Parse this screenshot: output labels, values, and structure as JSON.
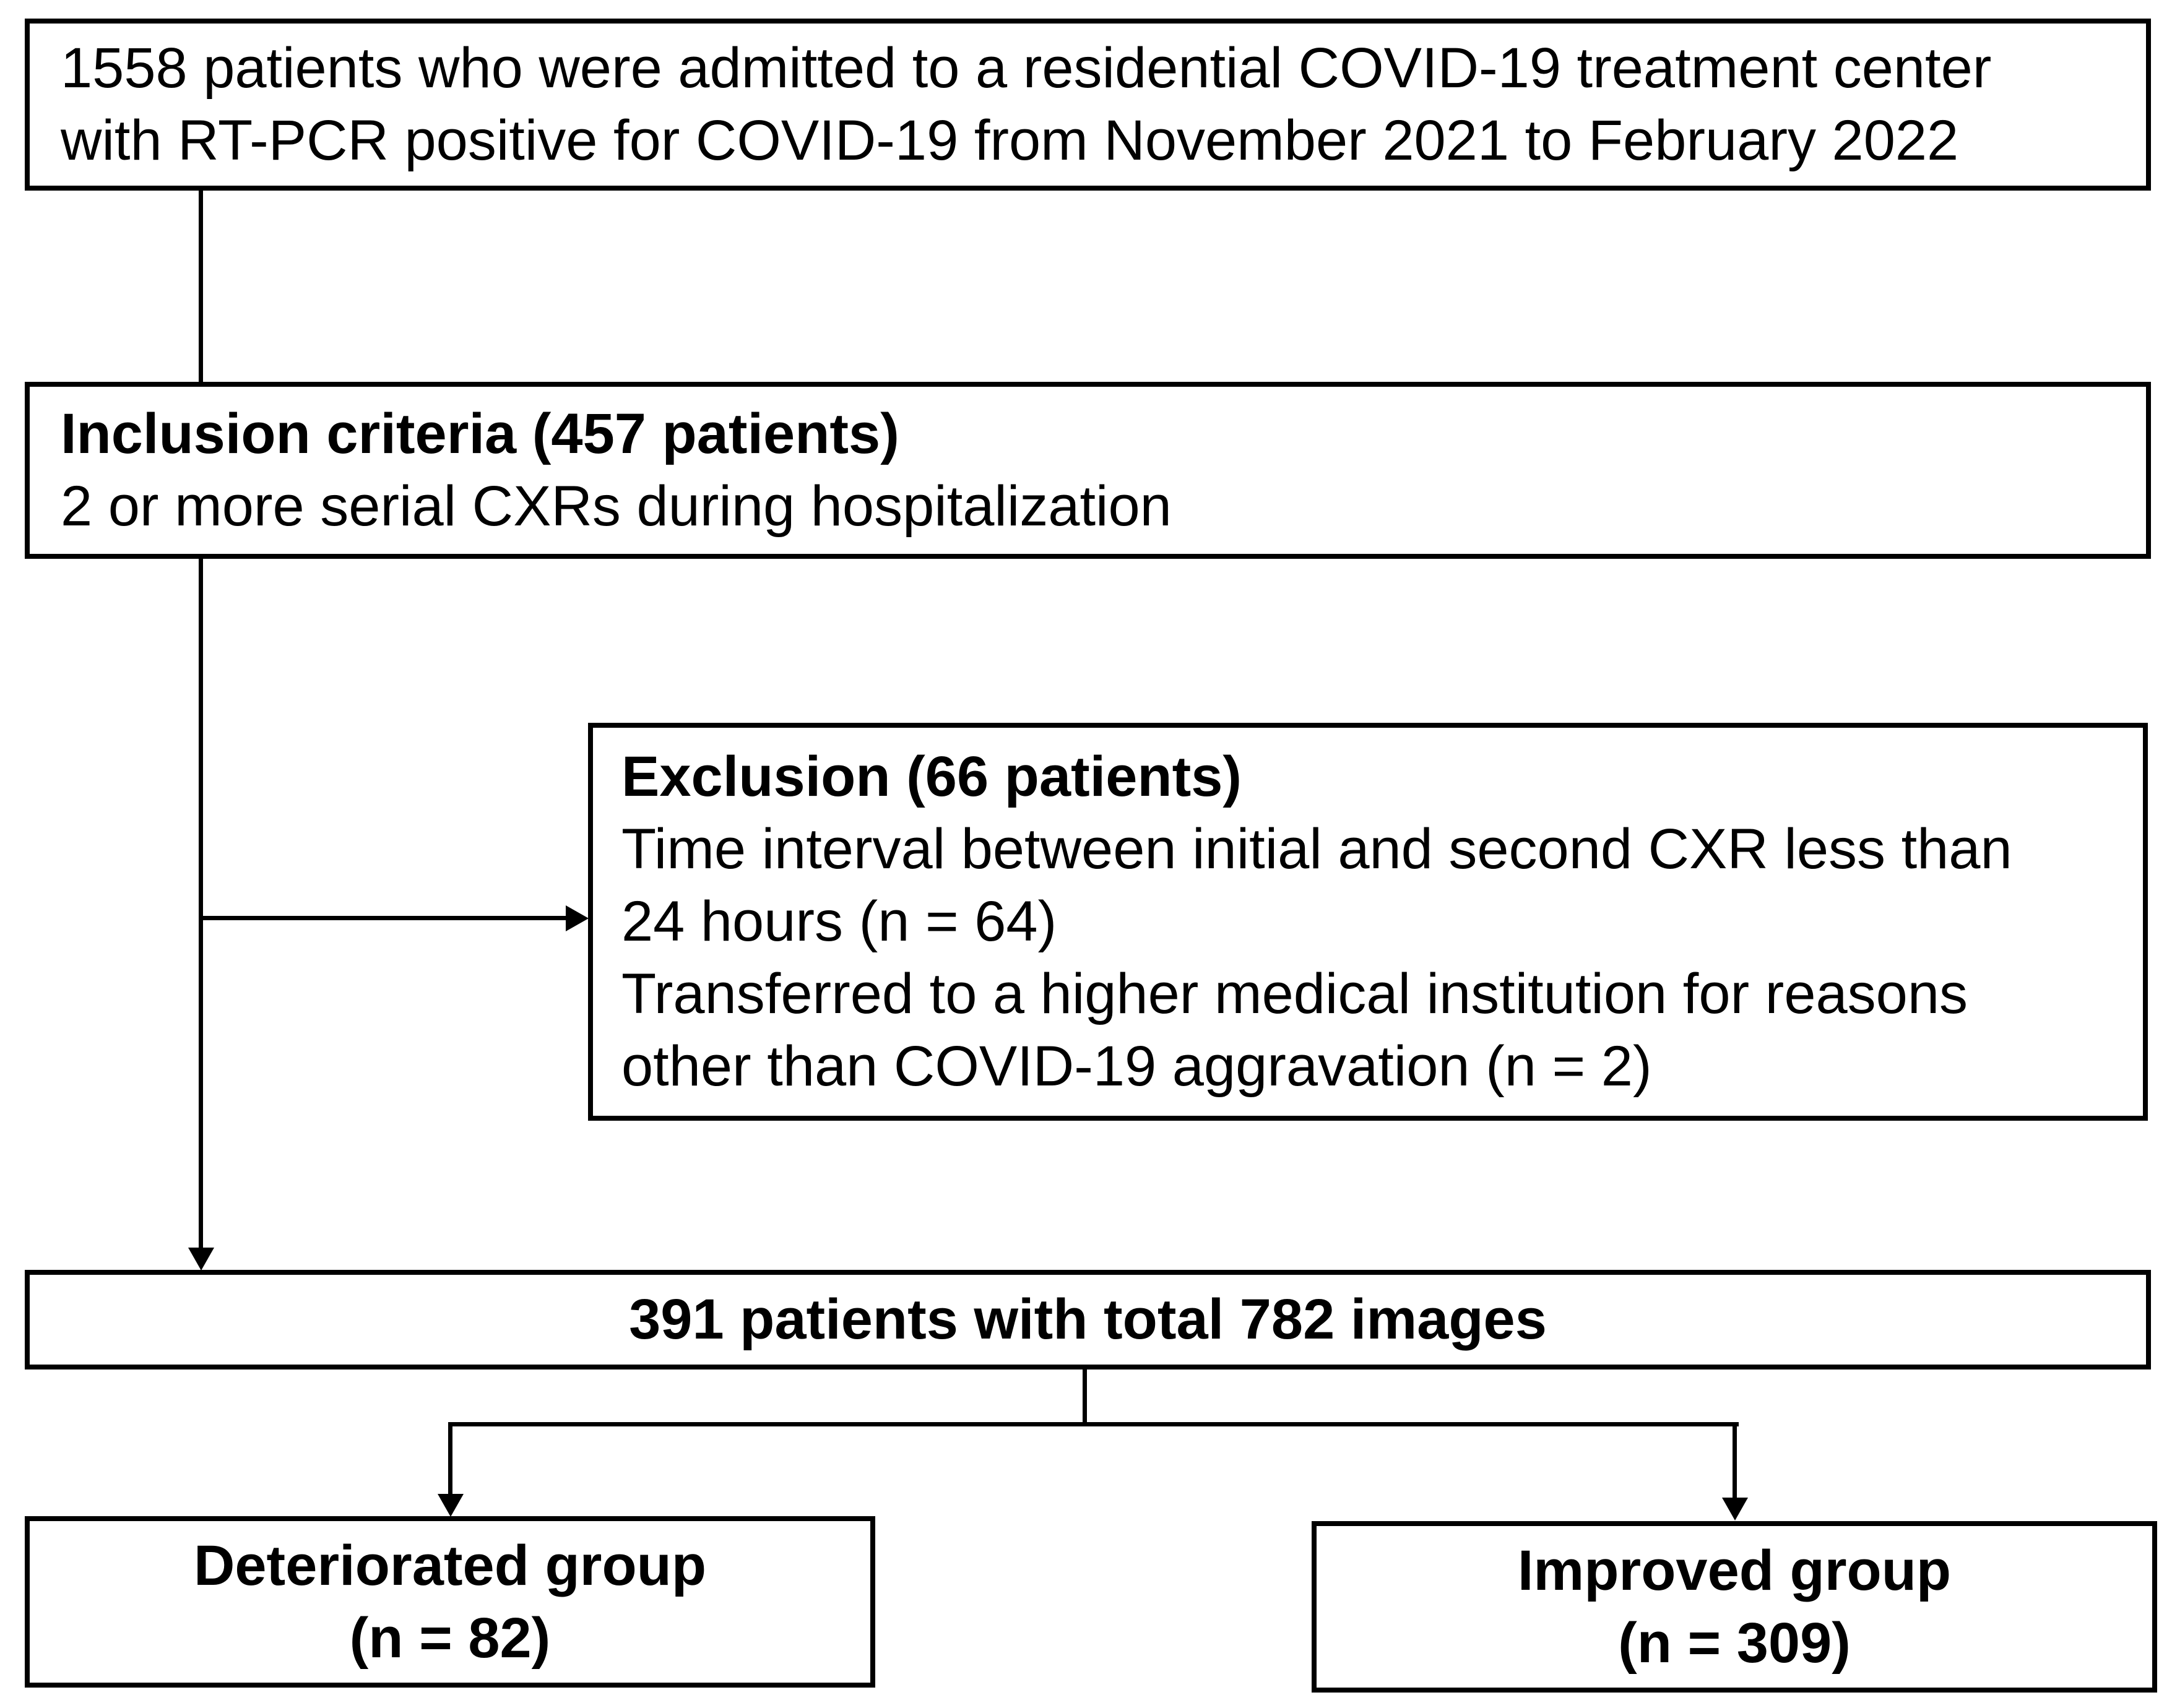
{
  "colors": {
    "background": "#ffffff",
    "line": "#000000",
    "text": "#000000"
  },
  "boxes": {
    "admitted": {
      "lines": [
        "1558 patients who were admitted to a residential COVID-19 treatment center",
        "with RT-PCR positive for COVID-19 from November 2021 to February 2022"
      ]
    },
    "inclusion": {
      "heading": "Inclusion criteria (457 patients)",
      "body": "2 or more serial CXRs during hospitalization"
    },
    "exclusion": {
      "heading": "Exclusion (66 patients)",
      "lines": [
        "Time interval between initial and second CXR less than",
        "24 hours (n = 64)",
        "Transferred to a higher medical institution for reasons",
        "other than COVID-19 aggravation (n = 2)"
      ]
    },
    "eligible": {
      "text": "391 patients with total 782 images"
    },
    "deteriorated": {
      "label": "Deteriorated group",
      "count": "(n = 82)"
    },
    "improved": {
      "label": "Improved group",
      "count": "(n = 309)"
    }
  }
}
